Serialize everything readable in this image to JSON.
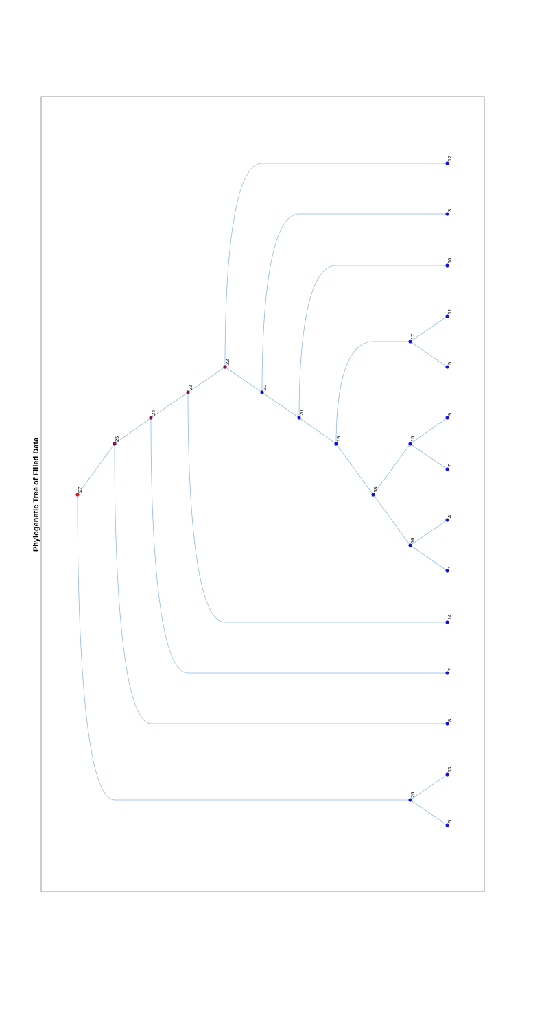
{
  "title": "Phylogenetic Tree of Filled Data",
  "colors": {
    "edge": "#8fb9e6",
    "leaf": "#1010ee",
    "internal": "#1010ee",
    "upper": "#8a0a50",
    "root": "#ee1010"
  },
  "nodes": [
    {
      "id": "1",
      "kind": "leaf"
    },
    {
      "id": "2",
      "kind": "leaf"
    },
    {
      "id": "3",
      "kind": "leaf"
    },
    {
      "id": "4",
      "kind": "leaf"
    },
    {
      "id": "5",
      "kind": "leaf"
    },
    {
      "id": "6",
      "kind": "leaf"
    },
    {
      "id": "7",
      "kind": "leaf"
    },
    {
      "id": "8",
      "kind": "leaf"
    },
    {
      "id": "9",
      "kind": "leaf"
    },
    {
      "id": "10",
      "kind": "leaf"
    },
    {
      "id": "11",
      "kind": "leaf"
    },
    {
      "id": "12",
      "kind": "leaf"
    },
    {
      "id": "13",
      "kind": "leaf"
    },
    {
      "id": "14",
      "kind": "leaf"
    },
    {
      "id": "15",
      "kind": "internal"
    },
    {
      "id": "16",
      "kind": "internal"
    },
    {
      "id": "17",
      "kind": "internal"
    },
    {
      "id": "18",
      "kind": "internal"
    },
    {
      "id": "19",
      "kind": "internal"
    },
    {
      "id": "20",
      "kind": "internal"
    },
    {
      "id": "21",
      "kind": "internal"
    },
    {
      "id": "22",
      "kind": "upper"
    },
    {
      "id": "23",
      "kind": "upper"
    },
    {
      "id": "24",
      "kind": "upper"
    },
    {
      "id": "25",
      "kind": "upper"
    },
    {
      "id": "26",
      "kind": "internal"
    },
    {
      "id": "27",
      "kind": "root"
    }
  ],
  "edges": [
    {
      "parent": "27",
      "child": "25"
    },
    {
      "parent": "27",
      "child": "26"
    },
    {
      "parent": "25",
      "child": "24"
    },
    {
      "parent": "25",
      "child": "8"
    },
    {
      "parent": "24",
      "child": "23"
    },
    {
      "parent": "24",
      "child": "2"
    },
    {
      "parent": "23",
      "child": "22"
    },
    {
      "parent": "23",
      "child": "14"
    },
    {
      "parent": "22",
      "child": "12"
    },
    {
      "parent": "22",
      "child": "21"
    },
    {
      "parent": "21",
      "child": "3"
    },
    {
      "parent": "21",
      "child": "20"
    },
    {
      "parent": "20",
      "child": "10"
    },
    {
      "parent": "20",
      "child": "19"
    },
    {
      "parent": "19",
      "child": "17"
    },
    {
      "parent": "19",
      "child": "18"
    },
    {
      "parent": "17",
      "child": "11"
    },
    {
      "parent": "17",
      "child": "5"
    },
    {
      "parent": "18",
      "child": "15"
    },
    {
      "parent": "18",
      "child": "16"
    },
    {
      "parent": "15",
      "child": "9"
    },
    {
      "parent": "15",
      "child": "7"
    },
    {
      "parent": "16",
      "child": "4"
    },
    {
      "parent": "16",
      "child": "1"
    },
    {
      "parent": "26",
      "child": "13"
    },
    {
      "parent": "26",
      "child": "6"
    }
  ]
}
